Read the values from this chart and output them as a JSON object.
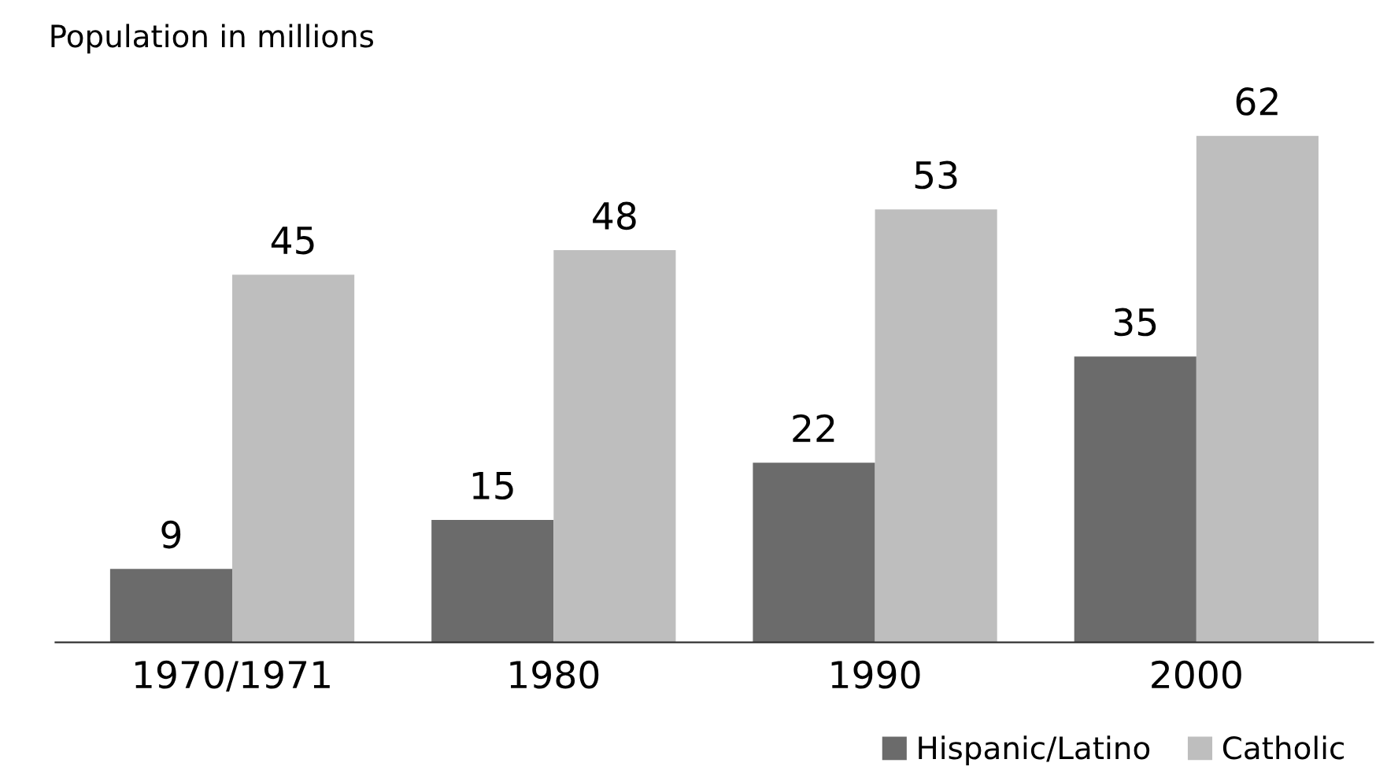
{
  "chart_data": {
    "type": "bar",
    "title": "Population in millions",
    "categories": [
      "1970/1971",
      "1980",
      "1990",
      "2000"
    ],
    "series": [
      {
        "name": "Hispanic/Latino",
        "color": "#6b6b6b",
        "values": [
          9,
          15,
          22,
          35
        ]
      },
      {
        "name": "Catholic",
        "color": "#bebebe",
        "values": [
          45,
          48,
          53,
          62
        ]
      }
    ],
    "data_labels": true,
    "legend": "bottom right",
    "tick_labels": "x",
    "grid": false
  }
}
